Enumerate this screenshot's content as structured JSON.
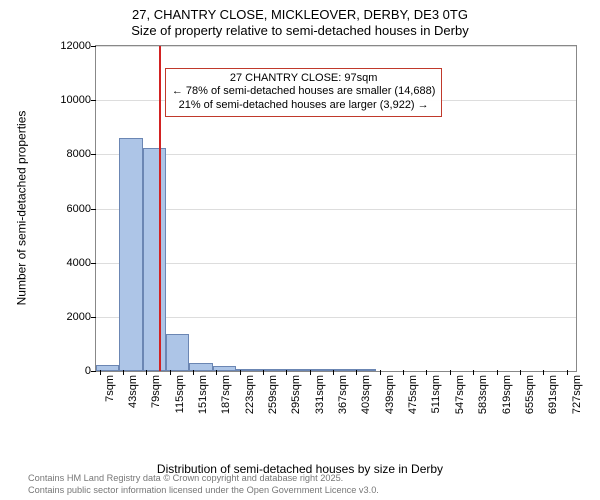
{
  "title": {
    "line1": "27, CHANTRY CLOSE, MICKLEOVER, DERBY, DE3 0TG",
    "line2": "Size of property relative to semi-detached houses in Derby"
  },
  "chart": {
    "type": "histogram",
    "background_color": "#ffffff",
    "grid_color": "#dddddd",
    "axis_color": "#888888",
    "font_family": "Arial",
    "tick_fontsize": 11,
    "axis_title_fontsize": 12,
    "y_axis_title": "Number of semi-detached properties",
    "x_axis_title": "Distribution of semi-detached houses by size in Derby",
    "ylim": [
      0,
      12000
    ],
    "yticks": [
      0,
      2000,
      4000,
      6000,
      8000,
      10000,
      12000
    ],
    "xrange": [
      0,
      740
    ],
    "xtick_step": 36,
    "xtick_start": 7,
    "xtick_unit": "sqm",
    "bar_fill": "#ADC5E7",
    "bar_border": "#6b86b3",
    "bars": [
      {
        "x0": 0,
        "x1": 36,
        "y": 210
      },
      {
        "x0": 36,
        "x1": 72,
        "y": 8600
      },
      {
        "x0": 72,
        "x1": 108,
        "y": 8250
      },
      {
        "x0": 108,
        "x1": 144,
        "y": 1380
      },
      {
        "x0": 144,
        "x1": 180,
        "y": 305
      },
      {
        "x0": 180,
        "x1": 216,
        "y": 180
      },
      {
        "x0": 216,
        "x1": 252,
        "y": 65
      },
      {
        "x0": 252,
        "x1": 288,
        "y": 55
      },
      {
        "x0": 288,
        "x1": 324,
        "y": 25
      },
      {
        "x0": 324,
        "x1": 360,
        "y": 15
      },
      {
        "x0": 360,
        "x1": 396,
        "y": 10
      },
      {
        "x0": 396,
        "x1": 432,
        "y": 8
      }
    ],
    "reference_line": {
      "x": 97,
      "color": "#d22222",
      "width": 2
    },
    "annotation": {
      "line1": "27 CHANTRY CLOSE: 97sqm",
      "line2": "← 78% of semi-detached houses are smaller (14,688)",
      "line3": "21% of semi-detached houses are larger (3,922) →",
      "border_color": "#c0392b",
      "text_color": "#000000",
      "bg_color": "#ffffff",
      "x": 100,
      "y_top": 11200
    }
  },
  "footer": {
    "line1": "Contains HM Land Registry data © Crown copyright and database right 2025.",
    "line2": "Contains public sector information licensed under the Open Government Licence v3.0."
  }
}
